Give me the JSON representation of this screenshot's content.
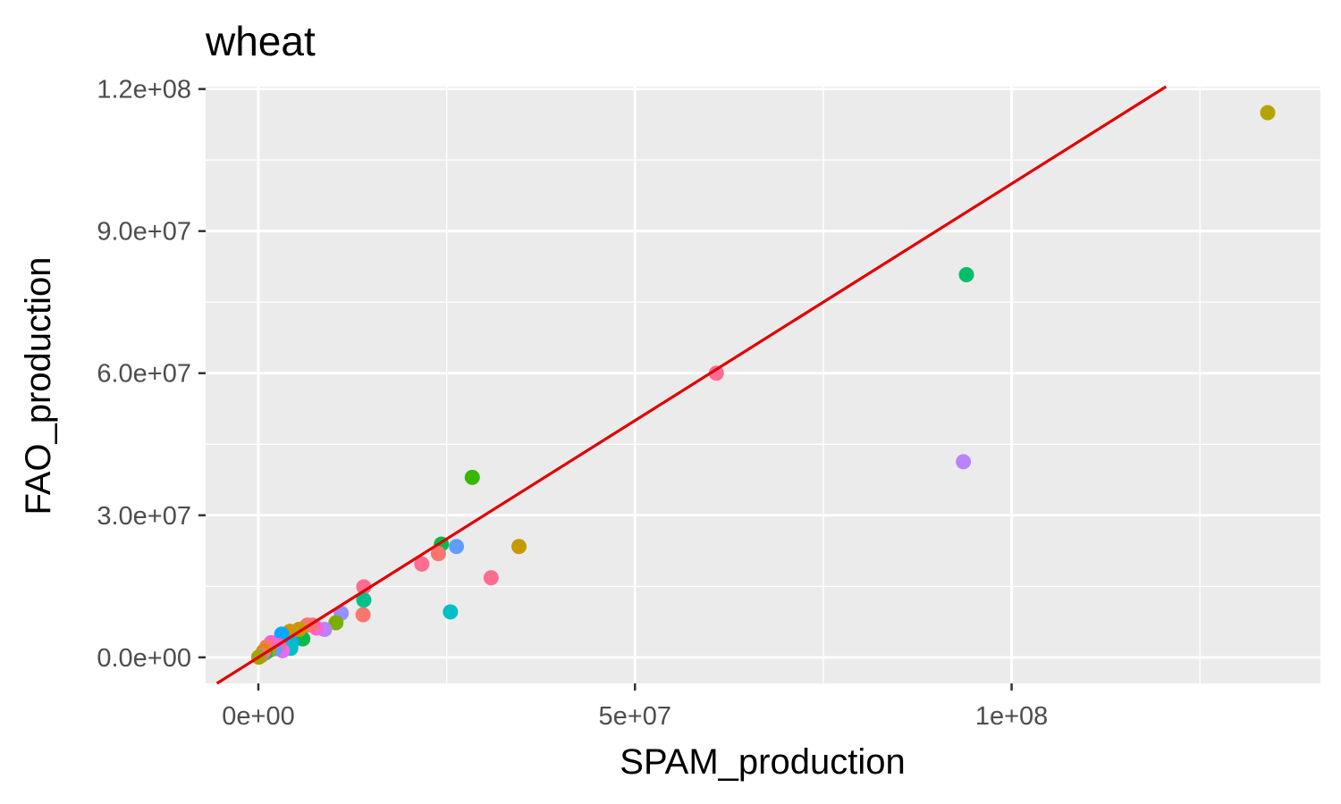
{
  "chart_data": {
    "type": "scatter",
    "title": "wheat",
    "xlabel": "SPAM_production",
    "ylabel": "FAO_production",
    "xlim": [
      -7000000,
      141000000
    ],
    "ylim": [
      -5500000,
      120500000
    ],
    "xticks": [
      0,
      50000000,
      100000000
    ],
    "xtick_labels": [
      "0e+00",
      "5e+07",
      "1e+08"
    ],
    "yticks": [
      0,
      30000000,
      60000000,
      90000000,
      120000000
    ],
    "ytick_labels": [
      "0.0e+00",
      "3.0e+07",
      "6.0e+07",
      "9.0e+07",
      "1.2e+08"
    ],
    "grid": true,
    "reference_line": {
      "slope": 1,
      "intercept": 0,
      "color": "#e00000"
    },
    "panel_background": "#ebebeb",
    "points": [
      {
        "x": 134000000,
        "y": 115000000,
        "color": "#b5a300"
      },
      {
        "x": 94000000,
        "y": 80800000,
        "color": "#00be67"
      },
      {
        "x": 93600000,
        "y": 41300000,
        "color": "#b983ff"
      },
      {
        "x": 60800000,
        "y": 60000000,
        "color": "#ff6c91"
      },
      {
        "x": 28400000,
        "y": 38000000,
        "color": "#39b600"
      },
      {
        "x": 34600000,
        "y": 23400000,
        "color": "#c49a00"
      },
      {
        "x": 26300000,
        "y": 23400000,
        "color": "#619cff"
      },
      {
        "x": 24300000,
        "y": 23900000,
        "color": "#00bb4e"
      },
      {
        "x": 23900000,
        "y": 21900000,
        "color": "#f8766d"
      },
      {
        "x": 21700000,
        "y": 19700000,
        "color": "#ff6c91"
      },
      {
        "x": 30900000,
        "y": 16800000,
        "color": "#ff6c91"
      },
      {
        "x": 25500000,
        "y": 9600000,
        "color": "#00bfc4"
      },
      {
        "x": 14000000,
        "y": 14900000,
        "color": "#ff6c91"
      },
      {
        "x": 14000000,
        "y": 12100000,
        "color": "#00c08b"
      },
      {
        "x": 13900000,
        "y": 9000000,
        "color": "#f8766d"
      },
      {
        "x": 11000000,
        "y": 9300000,
        "color": "#9590ff"
      },
      {
        "x": 10300000,
        "y": 7300000,
        "color": "#7cae00"
      },
      {
        "x": 8800000,
        "y": 5900000,
        "color": "#b983ff"
      },
      {
        "x": 7700000,
        "y": 6200000,
        "color": "#f564e3"
      },
      {
        "x": 7200000,
        "y": 6800000,
        "color": "#ff6c91"
      },
      {
        "x": 6500000,
        "y": 6800000,
        "color": "#f8766d"
      },
      {
        "x": 5900000,
        "y": 3900000,
        "color": "#00bb4e"
      },
      {
        "x": 5400000,
        "y": 5900000,
        "color": "#c49a00"
      },
      {
        "x": 4200000,
        "y": 5500000,
        "color": "#d39200"
      },
      {
        "x": 4400000,
        "y": 3000000,
        "color": "#00b0f6"
      },
      {
        "x": 4300000,
        "y": 1900000,
        "color": "#00bfc4"
      },
      {
        "x": 3100000,
        "y": 4900000,
        "color": "#00a9ff"
      },
      {
        "x": 3200000,
        "y": 1400000,
        "color": "#e76bf3"
      },
      {
        "x": 2700000,
        "y": 2500000,
        "color": "#ff62bc"
      },
      {
        "x": 2200000,
        "y": 1800000,
        "color": "#619cff"
      },
      {
        "x": 1700000,
        "y": 3100000,
        "color": "#fd61d1"
      },
      {
        "x": 1400000,
        "y": 1400000,
        "color": "#a3a500"
      },
      {
        "x": 1100000,
        "y": 2200000,
        "color": "#f8766d"
      },
      {
        "x": 900000,
        "y": 900000,
        "color": "#00bf7d"
      },
      {
        "x": 700000,
        "y": 1300000,
        "color": "#e58700"
      },
      {
        "x": 500000,
        "y": 500000,
        "color": "#ff6c91"
      },
      {
        "x": 300000,
        "y": 300000,
        "color": "#b5a300"
      },
      {
        "x": 150000,
        "y": 150000,
        "color": "#9590ff"
      },
      {
        "x": 50000,
        "y": 40000,
        "color": "#a3a500"
      }
    ]
  }
}
